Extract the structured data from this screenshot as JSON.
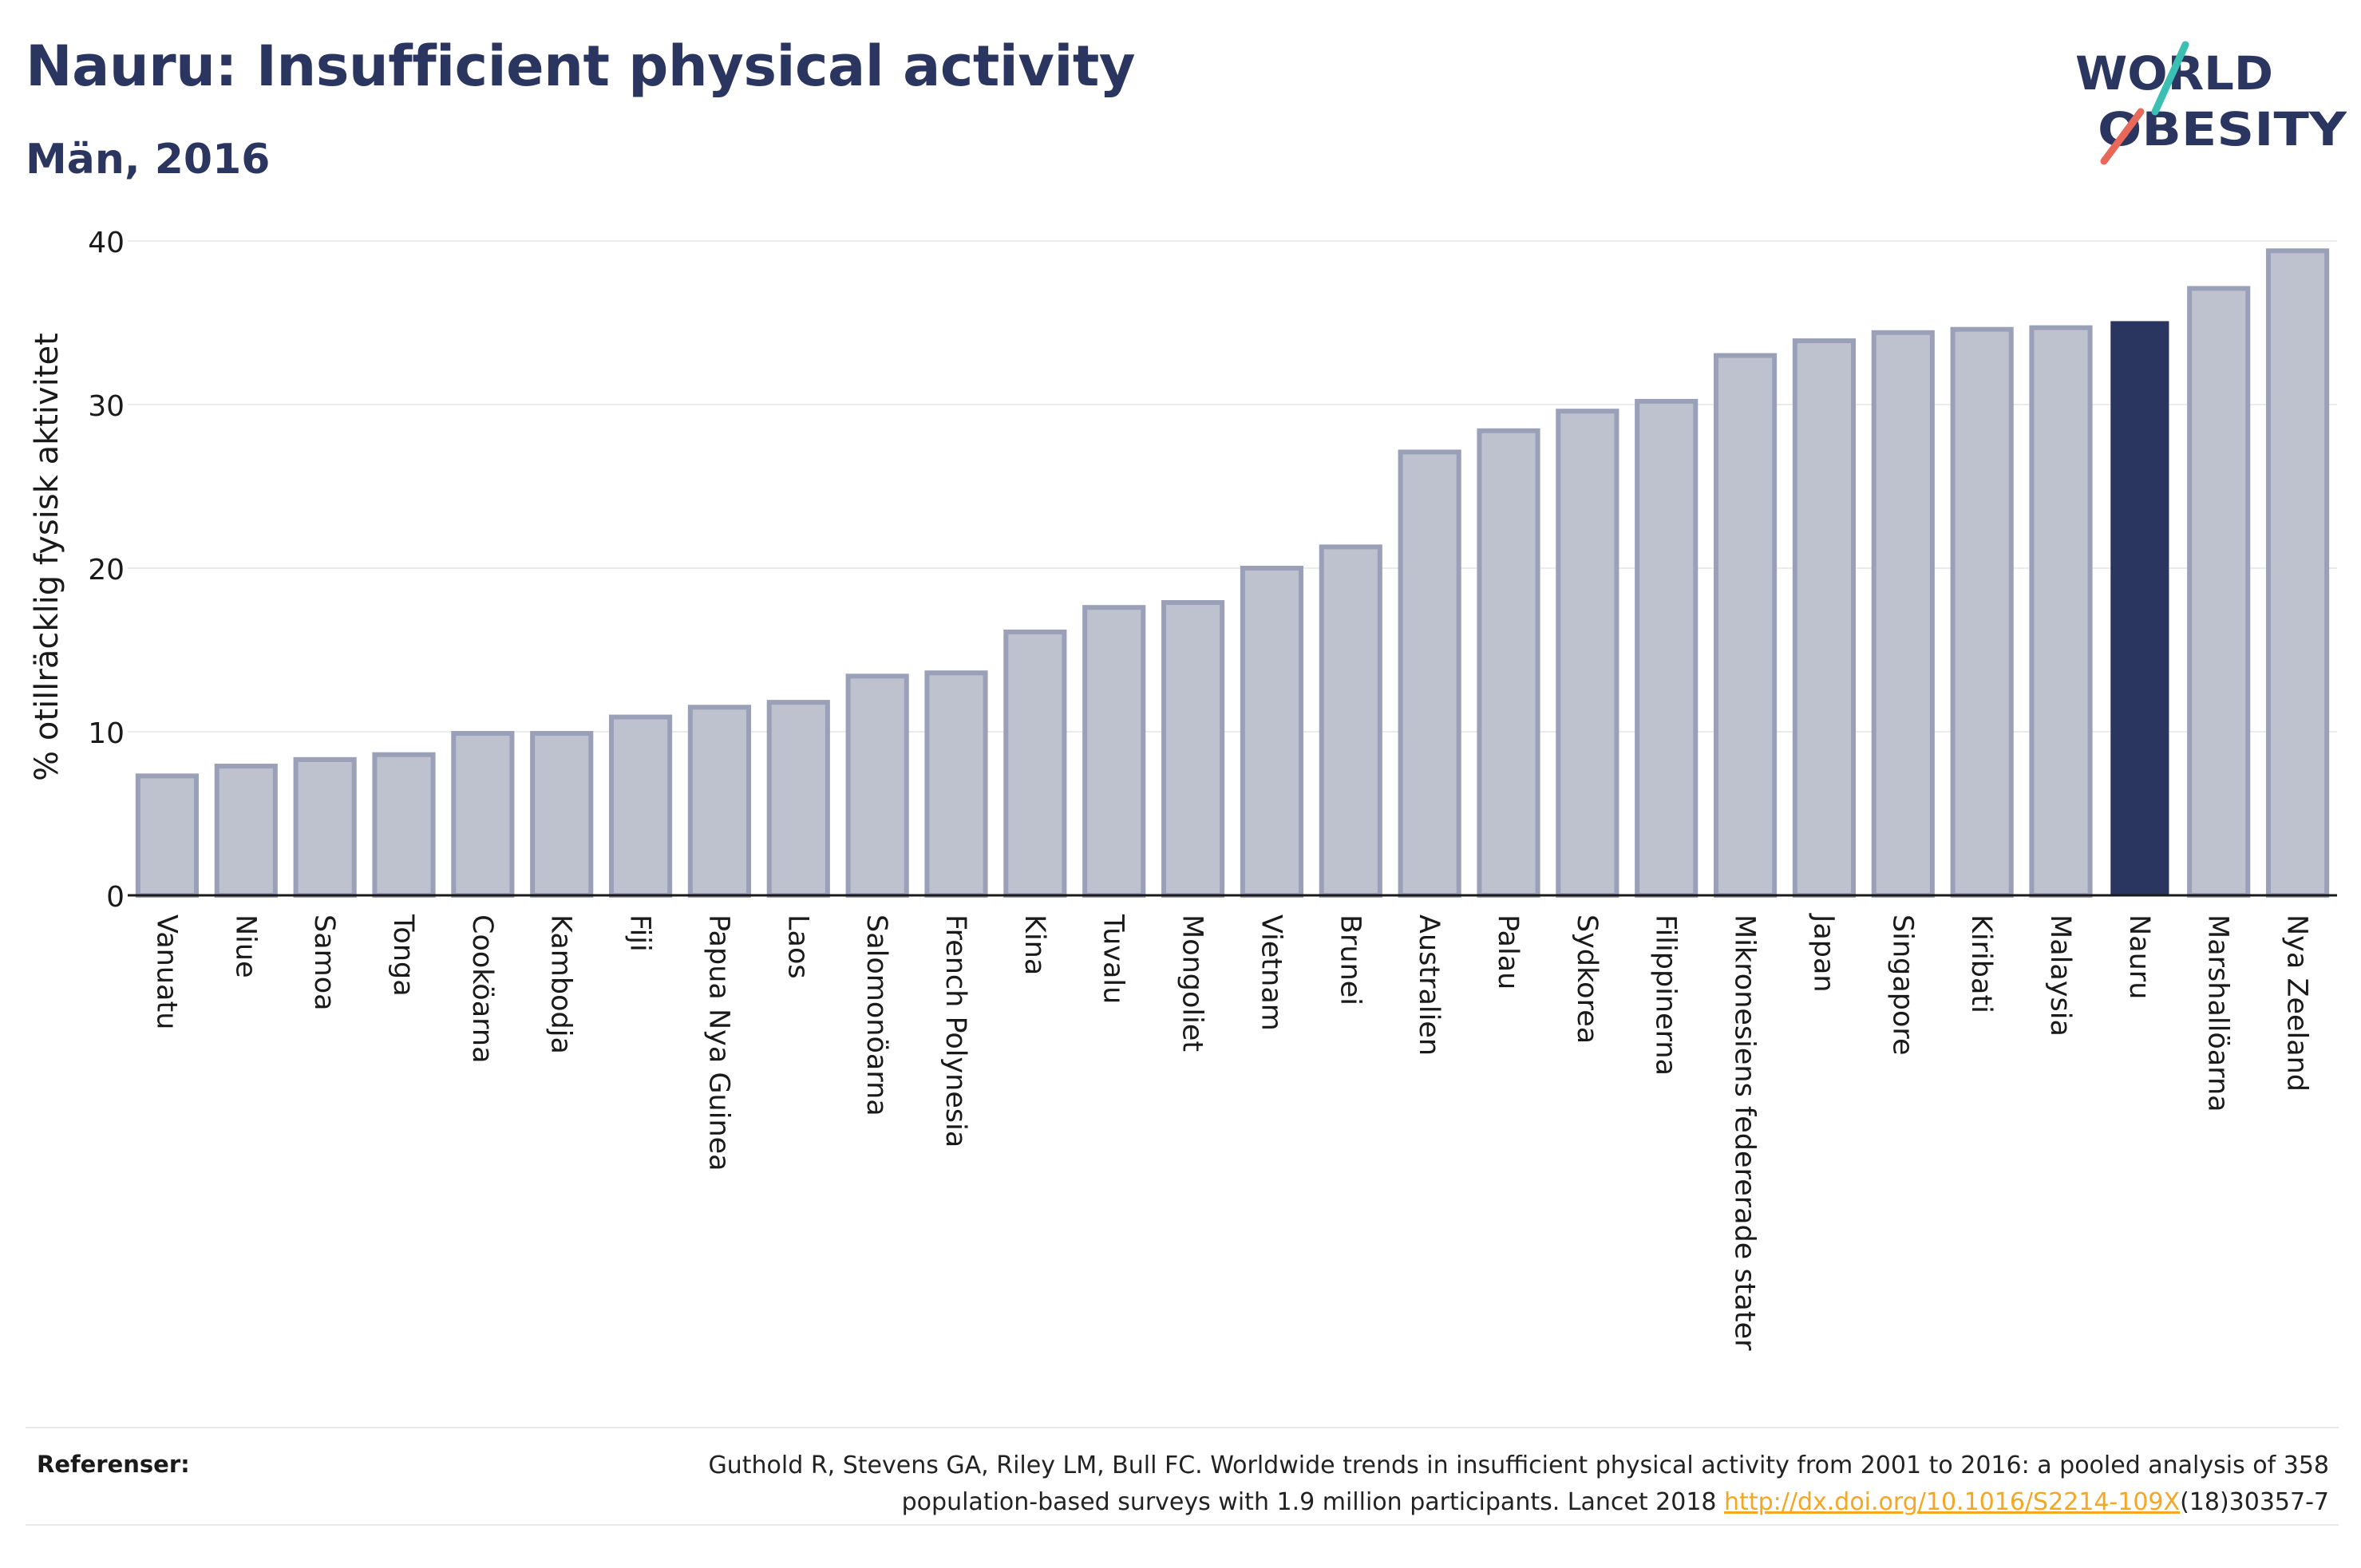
{
  "header": {
    "title": "Nauru: Insufficient physical activity",
    "subtitle": "Män, 2016"
  },
  "logo": {
    "line1": "WORLD",
    "line2": "OBESITY",
    "name": "world-obesity-logo"
  },
  "chart_data": {
    "type": "bar",
    "title": "Nauru: Insufficient physical activity",
    "subtitle": "Män, 2016",
    "xlabel": "",
    "ylabel": "% otillräcklig fysisk aktivitet",
    "ylim": [
      0,
      40
    ],
    "yticks": [
      0,
      10,
      20,
      30,
      40
    ],
    "grid": true,
    "legend": "none",
    "highlight": "Nauru",
    "colors": {
      "default_fill": "#bec2cf",
      "default_stroke": "#9aa0b8",
      "highlight_fill": "#2b3660"
    },
    "categories": [
      "Vanuatu",
      "Niue",
      "Samoa",
      "Tonga",
      "Cooköarna",
      "Kambodja",
      "Fiji",
      "Papua Nya Guinea",
      "Laos",
      "Salomonöarna",
      "French Polynesia",
      "Kina",
      "Tuvalu",
      "Mongoliet",
      "Vietnam",
      "Brunei",
      "Australien",
      "Palau",
      "Sydkorea",
      "Filippinerna",
      "Mikronesiens federerade stater",
      "Japan",
      "Singapore",
      "Kiribati",
      "Malaysia",
      "Nauru",
      "Marshallöarna",
      "Nya Zeeland"
    ],
    "values": [
      7.3,
      7.9,
      8.3,
      8.6,
      9.9,
      9.9,
      10.9,
      11.5,
      11.8,
      13.4,
      13.6,
      16.1,
      17.6,
      17.9,
      20.0,
      21.3,
      27.1,
      28.4,
      29.6,
      30.2,
      33.0,
      33.9,
      34.4,
      34.6,
      34.7,
      35.1,
      37.1,
      39.4
    ]
  },
  "footer": {
    "label": "Referenser:",
    "line1": "Guthold R, Stevens GA, Riley LM, Bull FC. Worldwide trends in insufficient physical activity from 2001 to 2016: a pooled analysis of 358",
    "line2_prefix": "population-based surveys with 1.9 million participants. Lancet 2018 ",
    "link": "http://dx.doi.org/10.1016/S2214-109X",
    "line2_suffix": "(18)30357-7"
  }
}
